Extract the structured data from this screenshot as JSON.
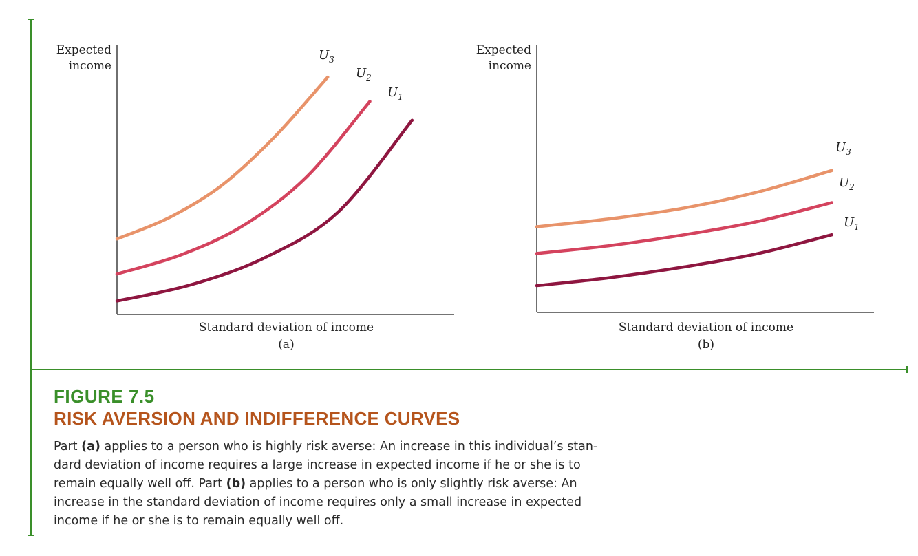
{
  "chart_data": [
    {
      "type": "line",
      "panel_label": "(a)",
      "xlabel": "Standard deviation of income",
      "ylabel_line1": "Expected",
      "ylabel_line2": "income",
      "series": [
        {
          "name": "U3",
          "x": [
            0.0,
            0.25,
            0.5,
            0.75,
            1.0
          ],
          "y": [
            0.28,
            0.36,
            0.48,
            0.66,
            0.88
          ]
        },
        {
          "name": "U2",
          "x": [
            0.0,
            0.3,
            0.6,
            0.9,
            1.2
          ],
          "y": [
            0.15,
            0.22,
            0.33,
            0.51,
            0.79
          ]
        },
        {
          "name": "U1",
          "x": [
            0.0,
            0.35,
            0.7,
            1.05,
            1.4
          ],
          "y": [
            0.05,
            0.11,
            0.21,
            0.38,
            0.72
          ]
        }
      ],
      "series_labels": [
        {
          "main": "U",
          "sub": "3"
        },
        {
          "main": "U",
          "sub": "2"
        },
        {
          "main": "U",
          "sub": "1"
        }
      ]
    },
    {
      "type": "line",
      "panel_label": "(b)",
      "xlabel": "Standard deviation of income",
      "ylabel_line1": "Expected",
      "ylabel_line2": "income",
      "series": [
        {
          "name": "U3",
          "x": [
            0.0,
            0.35,
            0.7,
            1.05,
            1.4
          ],
          "y": [
            0.32,
            0.35,
            0.39,
            0.45,
            0.53
          ]
        },
        {
          "name": "U2",
          "x": [
            0.0,
            0.35,
            0.7,
            1.05,
            1.4
          ],
          "y": [
            0.22,
            0.25,
            0.29,
            0.34,
            0.41
          ]
        },
        {
          "name": "U1",
          "x": [
            0.0,
            0.35,
            0.7,
            1.05,
            1.4
          ],
          "y": [
            0.1,
            0.13,
            0.17,
            0.22,
            0.29
          ]
        }
      ],
      "series_labels": [
        {
          "main": "U",
          "sub": "3"
        },
        {
          "main": "U",
          "sub": "2"
        },
        {
          "main": "U",
          "sub": "1"
        }
      ]
    }
  ],
  "colors": {
    "U3": "#e8936a",
    "U2": "#d4435e",
    "U1": "#8e1640",
    "frame_green": "#3a8f2a",
    "figure_number": "#3a8f2a",
    "figure_title": "#b5541c"
  },
  "caption": {
    "figure_number": "FIGURE 7.5",
    "title": "RISK AVERSION AND INDIFFERENCE CURVES",
    "lines": [
      {
        "pre": "Part ",
        "bold": "(a)",
        "post": " applies to a person who is highly risk averse: An increase in this individual’s stan-"
      },
      {
        "pre": "dard deviation of income requires a large increase in expected income if he or she is to",
        "bold": "",
        "post": ""
      },
      {
        "pre": "remain equally well off. Part ",
        "bold": "(b)",
        "post": " applies to a person who is only slightly risk averse: An"
      },
      {
        "pre": "increase in the standard deviation of income requires only a small increase in expected",
        "bold": "",
        "post": ""
      },
      {
        "pre": "income if he or she is to remain equally well off.",
        "bold": "",
        "post": ""
      }
    ]
  }
}
